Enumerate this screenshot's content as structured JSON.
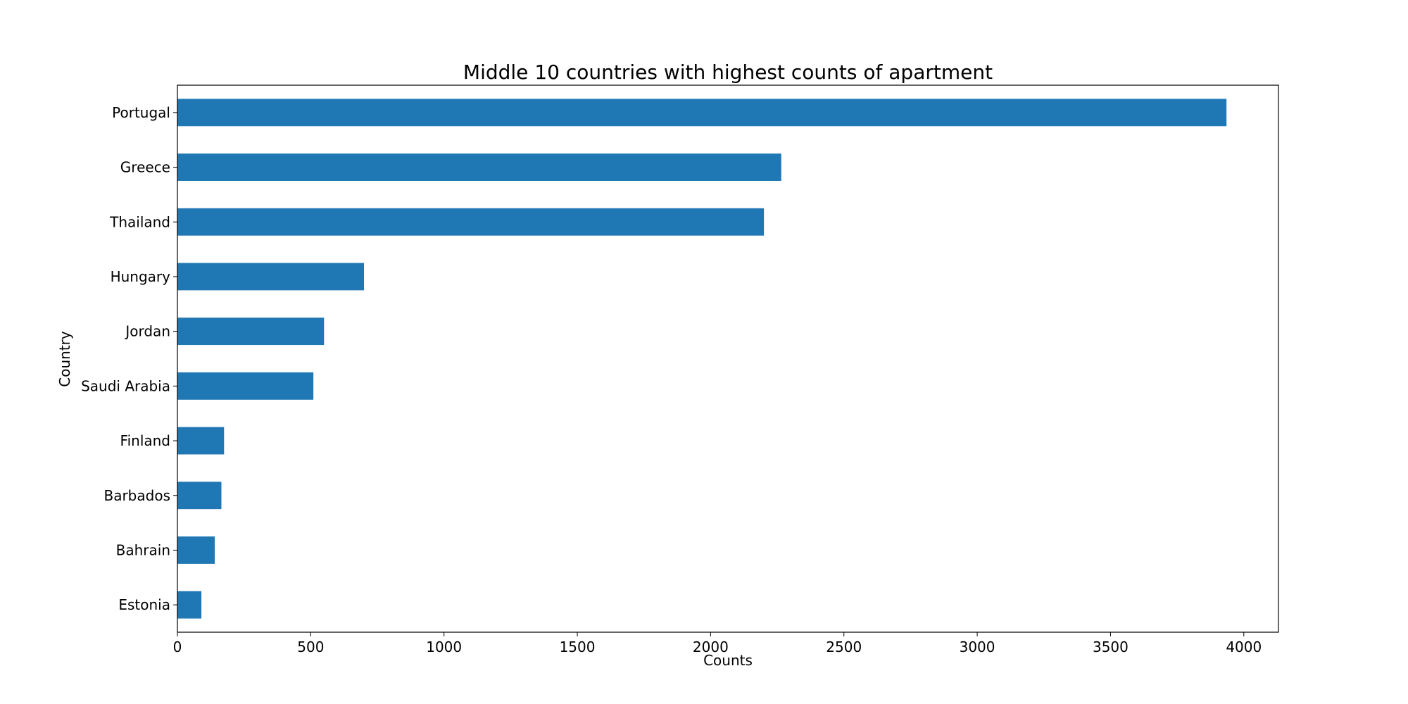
{
  "chart_data": {
    "type": "bar",
    "orientation": "horizontal",
    "title": "Middle 10 countries with highest counts of apartment",
    "xlabel": "Counts",
    "ylabel": "Country",
    "categories": [
      "Portugal",
      "Greece",
      "Thailand",
      "Hungary",
      "Jordan",
      "Saudi Arabia",
      "Finland",
      "Barbados",
      "Bahrain",
      "Estonia"
    ],
    "values": [
      3935,
      2265,
      2200,
      700,
      550,
      510,
      175,
      165,
      140,
      90
    ],
    "xlim": [
      0,
      4130
    ],
    "xticks": [
      0,
      500,
      1000,
      1500,
      2000,
      2500,
      3000,
      3500,
      4000
    ],
    "grid": false,
    "legend": "none",
    "bar_color": "#1f77b4"
  }
}
